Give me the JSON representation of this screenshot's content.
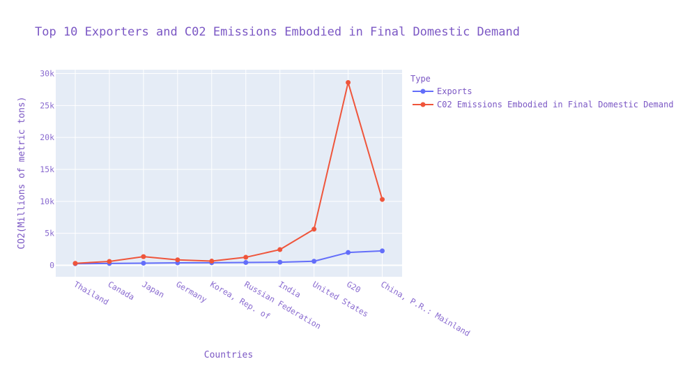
{
  "chart_data": {
    "type": "line",
    "title": "Top 10 Exporters and C02 Emissions Embodied in Final Domestic Demand",
    "xlabel": "Countries",
    "ylabel": "CO2(Millions of metric tons)",
    "categories": [
      "Thailand",
      "Canada",
      "Japan",
      "Germany",
      "Korea, Rep. of",
      "Russian Federation",
      "India",
      "United States",
      "G20",
      "China, P.R.: Mainland"
    ],
    "ylim": [
      -1800,
      30600
    ],
    "yticks": [
      0,
      5000,
      10000,
      15000,
      20000,
      25000,
      30000
    ],
    "ytick_labels": [
      "0",
      "5k",
      "10k",
      "15k",
      "20k",
      "25k",
      "30k"
    ],
    "grid": true,
    "legend": {
      "title": "Type",
      "position": "top-right"
    },
    "series": [
      {
        "name": "Exports",
        "color": "#636efa",
        "values": [
          250,
          280,
          330,
          380,
          400,
          430,
          480,
          630,
          2000,
          2250
        ]
      },
      {
        "name": "C02 Emissions Embodied in Final Domestic Demand",
        "color": "#ef553b",
        "values": [
          300,
          600,
          1350,
          850,
          650,
          1250,
          2450,
          5650,
          28600,
          10300
        ]
      }
    ]
  }
}
